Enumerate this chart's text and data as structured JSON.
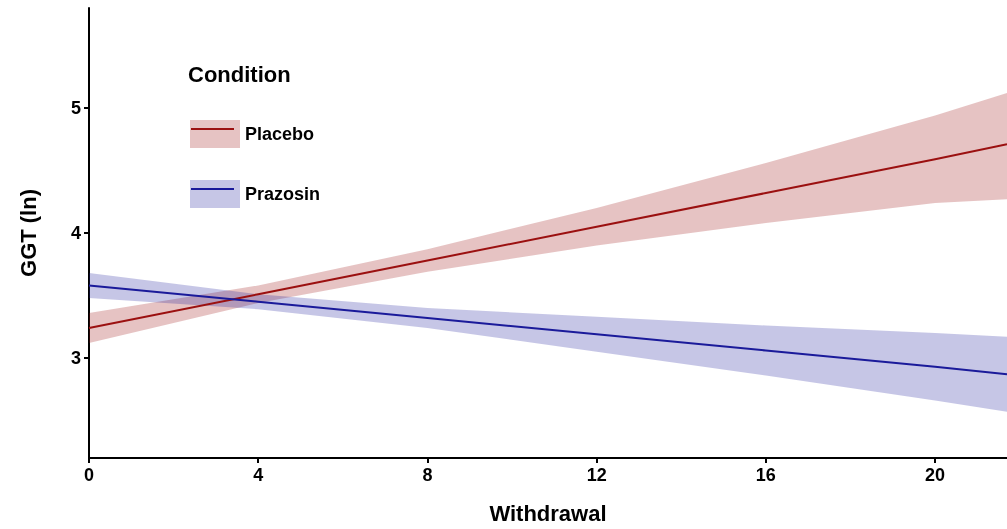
{
  "chart_data": {
    "type": "line",
    "xlabel": "Withdrawal",
    "ylabel": "GGT (ln)",
    "legend_title": "Condition",
    "legend": "top left",
    "grid": false,
    "marker": "none",
    "line_style": "solid",
    "x": [
      0,
      4,
      8,
      12,
      16,
      20,
      21.7
    ],
    "xlim": [
      0,
      21.7
    ],
    "xticks": [
      0,
      4,
      8,
      12,
      16,
      20
    ],
    "ylim": [
      2.2,
      5.8
    ],
    "yticks": [
      3,
      4,
      5
    ],
    "series": [
      {
        "name": "Placebo",
        "color": "#9b1010",
        "values": [
          3.24,
          3.51,
          3.78,
          4.05,
          4.32,
          4.59,
          4.71
        ],
        "lower": [
          3.12,
          3.44,
          3.69,
          3.9,
          4.08,
          4.24,
          4.27
        ],
        "upper": [
          3.36,
          3.58,
          3.87,
          4.2,
          4.56,
          4.94,
          5.12
        ]
      },
      {
        "name": "Prazosin",
        "color": "#1a1a9a",
        "values": [
          3.58,
          3.45,
          3.32,
          3.19,
          3.06,
          2.93,
          2.87
        ],
        "lower": [
          3.48,
          3.39,
          3.24,
          3.05,
          2.86,
          2.66,
          2.57
        ],
        "upper": [
          3.68,
          3.51,
          3.4,
          3.33,
          3.26,
          3.2,
          3.17
        ]
      }
    ]
  }
}
